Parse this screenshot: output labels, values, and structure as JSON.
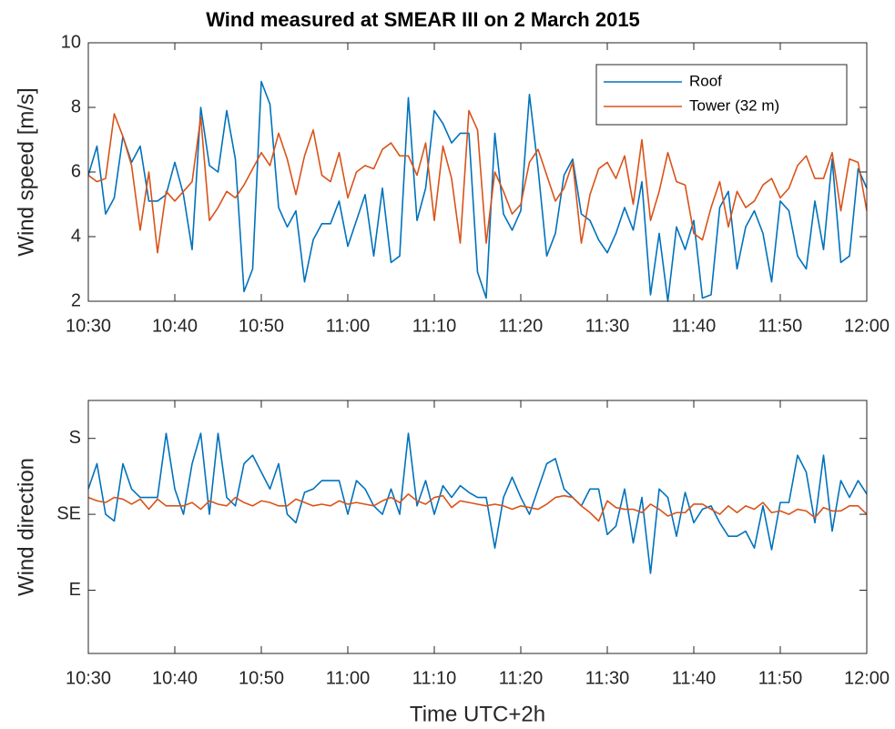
{
  "chart_data": [
    {
      "type": "line",
      "title": "Wind measured at SMEAR III on 2 March 2015",
      "y_label": "Wind speed [m/s]",
      "x": [
        "10:30",
        "10:31",
        "10:32",
        "10:33",
        "10:34",
        "10:35",
        "10:36",
        "10:37",
        "10:38",
        "10:39",
        "10:40",
        "10:41",
        "10:42",
        "10:43",
        "10:44",
        "10:45",
        "10:46",
        "10:47",
        "10:48",
        "10:49",
        "10:50",
        "10:51",
        "10:52",
        "10:53",
        "10:54",
        "10:55",
        "10:56",
        "10:57",
        "10:58",
        "10:59",
        "11:00",
        "11:01",
        "11:02",
        "11:03",
        "11:04",
        "11:05",
        "11:06",
        "11:07",
        "11:08",
        "11:09",
        "11:10",
        "11:11",
        "11:12",
        "11:13",
        "11:14",
        "11:15",
        "11:16",
        "11:17",
        "11:18",
        "11:19",
        "11:20",
        "11:21",
        "11:22",
        "11:23",
        "11:24",
        "11:25",
        "11:26",
        "11:27",
        "11:28",
        "11:29",
        "11:30",
        "11:31",
        "11:32",
        "11:33",
        "11:34",
        "11:35",
        "11:36",
        "11:37",
        "11:38",
        "11:39",
        "11:40",
        "11:41",
        "11:42",
        "11:43",
        "11:44",
        "11:45",
        "11:46",
        "11:47",
        "11:48",
        "11:49",
        "11:50",
        "11:51",
        "11:52",
        "11:53",
        "11:54",
        "11:55",
        "11:56",
        "11:57",
        "11:58",
        "11:59",
        "12:00"
      ],
      "xlim": [
        "10:30",
        "12:00"
      ],
      "xticks": [
        "10:30",
        "10:40",
        "10:50",
        "11:00",
        "11:10",
        "11:20",
        "11:30",
        "11:40",
        "11:50",
        "12:00"
      ],
      "ylim": [
        2,
        10
      ],
      "yticks": [
        2,
        4,
        6,
        8,
        10
      ],
      "legend": "northeast",
      "series": [
        {
          "name": "Roof",
          "color": "#0072bd",
          "values": [
            5.9,
            6.8,
            4.7,
            5.2,
            7.1,
            6.3,
            6.8,
            5.1,
            5.1,
            5.3,
            6.3,
            5.3,
            3.6,
            8.0,
            6.2,
            6.0,
            7.9,
            6.4,
            2.3,
            3.0,
            8.8,
            8.1,
            4.9,
            4.3,
            4.8,
            2.6,
            3.9,
            4.4,
            4.4,
            5.1,
            3.7,
            4.5,
            5.3,
            3.4,
            5.5,
            3.2,
            3.4,
            8.3,
            4.5,
            5.5,
            7.9,
            7.5,
            6.9,
            7.2,
            7.2,
            2.9,
            2.1,
            7.2,
            4.7,
            4.2,
            4.8,
            8.4,
            6.1,
            3.4,
            4.1,
            5.9,
            6.4,
            4.7,
            4.5,
            3.9,
            3.5,
            4.1,
            4.9,
            4.2,
            5.7,
            2.2,
            4.1,
            2.0,
            4.3,
            3.6,
            4.5,
            2.1,
            2.2,
            4.9,
            5.4,
            3.0,
            4.3,
            4.8,
            4.1,
            2.6,
            5.1,
            4.8,
            3.4,
            3.0,
            5.1,
            3.6,
            6.4,
            3.2,
            3.4,
            6.1,
            5.5
          ]
        },
        {
          "name": "Tower (32 m)",
          "color": "#d95319",
          "values": [
            5.9,
            5.7,
            5.8,
            7.8,
            7.1,
            6.2,
            4.2,
            6.0,
            3.5,
            5.4,
            5.1,
            5.4,
            5.7,
            7.7,
            4.5,
            4.9,
            5.4,
            5.2,
            5.6,
            6.1,
            6.6,
            6.2,
            7.2,
            6.4,
            5.3,
            6.5,
            7.3,
            5.9,
            5.7,
            6.6,
            5.2,
            6.0,
            6.2,
            6.1,
            6.7,
            6.9,
            6.5,
            6.5,
            5.9,
            6.9,
            4.5,
            6.8,
            5.8,
            3.8,
            7.9,
            7.3,
            3.8,
            6.0,
            5.4,
            4.7,
            5.0,
            6.3,
            6.7,
            5.9,
            5.1,
            5.5,
            6.3,
            3.8,
            5.3,
            6.1,
            6.3,
            5.8,
            6.5,
            5.0,
            7.0,
            4.5,
            5.4,
            6.6,
            5.7,
            5.6,
            4.1,
            3.9,
            4.9,
            5.7,
            4.3,
            5.4,
            4.9,
            5.1,
            5.6,
            5.8,
            5.2,
            5.5,
            6.2,
            6.5,
            5.8,
            5.8,
            6.6,
            4.8,
            6.4,
            6.3,
            4.8
          ]
        }
      ]
    },
    {
      "type": "line",
      "y_label": "Wind direction",
      "x_label": "Time UTC+2h",
      "x": [
        "10:30",
        "10:31",
        "10:32",
        "10:33",
        "10:34",
        "10:35",
        "10:36",
        "10:37",
        "10:38",
        "10:39",
        "10:40",
        "10:41",
        "10:42",
        "10:43",
        "10:44",
        "10:45",
        "10:46",
        "10:47",
        "10:48",
        "10:49",
        "10:50",
        "10:51",
        "10:52",
        "10:53",
        "10:54",
        "10:55",
        "10:56",
        "10:57",
        "10:58",
        "10:59",
        "11:00",
        "11:01",
        "11:02",
        "11:03",
        "11:04",
        "11:05",
        "11:06",
        "11:07",
        "11:08",
        "11:09",
        "11:10",
        "11:11",
        "11:12",
        "11:13",
        "11:14",
        "11:15",
        "11:16",
        "11:17",
        "11:18",
        "11:19",
        "11:20",
        "11:21",
        "11:22",
        "11:23",
        "11:24",
        "11:25",
        "11:26",
        "11:27",
        "11:28",
        "11:29",
        "11:30",
        "11:31",
        "11:32",
        "11:33",
        "11:34",
        "11:35",
        "11:36",
        "11:37",
        "11:38",
        "11:39",
        "11:40",
        "11:41",
        "11:42",
        "11:43",
        "11:44",
        "11:45",
        "11:46",
        "11:47",
        "11:48",
        "11:49",
        "11:50",
        "11:51",
        "11:52",
        "11:53",
        "11:54",
        "11:55",
        "11:56",
        "11:57",
        "11:58",
        "11:59",
        "12:00"
      ],
      "xlim": [
        "10:30",
        "12:00"
      ],
      "xticks": [
        "10:30",
        "10:40",
        "10:50",
        "11:00",
        "11:10",
        "11:20",
        "11:30",
        "11:40",
        "11:50",
        "12:00"
      ],
      "ylim": [
        52.5,
        202.5
      ],
      "yticks": [
        {
          "value": 90,
          "label": "E"
        },
        {
          "value": 135,
          "label": "SE"
        },
        {
          "value": 180,
          "label": "S"
        }
      ],
      "series": [
        {
          "name": "Roof",
          "color": "#0072bd",
          "values": [
            150,
            165,
            135,
            131,
            165,
            150,
            145,
            145,
            145,
            183,
            150,
            135,
            165,
            183,
            135,
            183,
            145,
            140,
            165,
            170,
            160,
            150,
            165,
            135,
            130,
            148,
            150,
            155,
            155,
            155,
            135,
            155,
            150,
            140,
            135,
            150,
            135,
            183,
            140,
            155,
            135,
            152,
            145,
            152,
            148,
            145,
            145,
            115,
            145,
            157,
            145,
            135,
            150,
            165,
            168,
            150,
            145,
            140,
            150,
            150,
            123,
            128,
            150,
            118,
            145,
            100,
            150,
            145,
            122,
            148,
            130,
            138,
            140,
            130,
            122,
            122,
            125,
            115,
            140,
            114,
            142,
            142,
            170,
            160,
            130,
            170,
            125,
            155,
            145,
            155,
            147
          ]
        },
        {
          "name": "Tower (32 m)",
          "color": "#d95319",
          "values": [
            145,
            143,
            142,
            145,
            144,
            141,
            144,
            138,
            144,
            140,
            140,
            140,
            142,
            138,
            143,
            141,
            140,
            145,
            142,
            140,
            143,
            142,
            140,
            140,
            144,
            142,
            140,
            141,
            140,
            143,
            141,
            142,
            141,
            140,
            143,
            145,
            142,
            147,
            143,
            141,
            145,
            146,
            139,
            143,
            142,
            141,
            140,
            141,
            140,
            138,
            140,
            139,
            138,
            141,
            145,
            146,
            145,
            140,
            136,
            131,
            143,
            139,
            138,
            138,
            136,
            141,
            138,
            134,
            136,
            136,
            141,
            141,
            138,
            135,
            140,
            136,
            140,
            138,
            142,
            136,
            137,
            135,
            138,
            137,
            133,
            139,
            137,
            137,
            140,
            140,
            135
          ]
        }
      ]
    }
  ]
}
